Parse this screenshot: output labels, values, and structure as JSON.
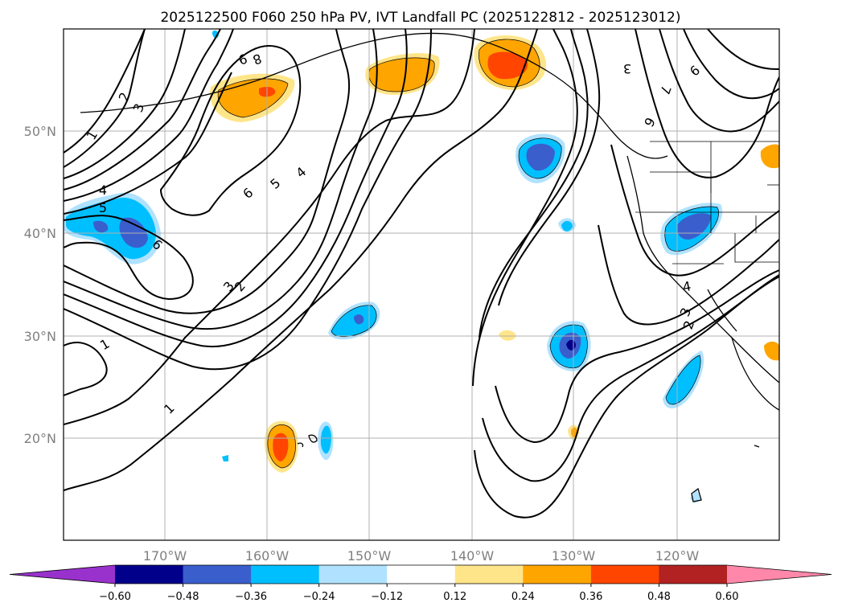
{
  "title": "2025122500 F060 250 hPa PV, IVT Landfall PC (2025122812 - 2025123012)",
  "lat_labels": [
    "50°N",
    "40°N",
    "30°N",
    "20°N"
  ],
  "lon_labels": [
    "170°W",
    "160°W",
    "150°W",
    "140°W",
    "130°W",
    "120°W"
  ],
  "colorbar": {
    "ticks": [
      "−0.60",
      "−0.48",
      "−0.36",
      "−0.24",
      "−0.12",
      "0.12",
      "0.24",
      "0.36",
      "0.48",
      "0.60"
    ],
    "colors": [
      "#9932cc",
      "#00008b",
      "#3a5fcd",
      "#00bfff",
      "#b0e2ff",
      "#ffffff",
      "#ffe58a",
      "#ffa500",
      "#ff4500",
      "#b22222",
      "#ff88aa"
    ]
  },
  "pv_contour_labels": [
    "1",
    "2",
    "3",
    "4",
    "5",
    "6",
    "7",
    "8",
    "9"
  ],
  "map": {
    "lat_range": [
      10,
      60
    ],
    "lon_range": [
      -180,
      -110
    ],
    "gridlines": true
  },
  "chart_data": {
    "type": "contour-map",
    "title": "2025122500 F060 250 hPa PV, IVT Landfall PC (2025122812 - 2025123012)",
    "filled_variable_levels": [
      -0.6,
      -0.48,
      -0.36,
      -0.24,
      -0.12,
      0.12,
      0.24,
      0.36,
      0.48,
      0.6
    ],
    "contour_levels": [
      1,
      2,
      3,
      4,
      5,
      6,
      7,
      8,
      9
    ],
    "xticks": [
      "170°W",
      "160°W",
      "150°W",
      "140°W",
      "130°W",
      "120°W"
    ],
    "yticks": [
      "50°N",
      "40°N",
      "30°N",
      "20°N"
    ]
  }
}
